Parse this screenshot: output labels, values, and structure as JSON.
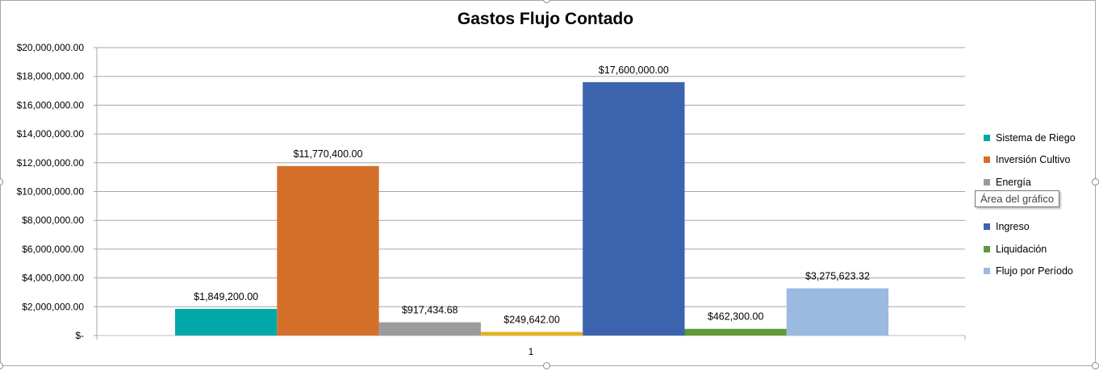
{
  "tooltip": "Área del gráfico",
  "chart_data": {
    "type": "bar",
    "title": "Gastos Flujo Contado",
    "xlabel": "",
    "ylabel": "",
    "categories": [
      "1"
    ],
    "ylim": [
      0,
      20000000
    ],
    "yticks": [
      "$-",
      "$2,000,000.00",
      "$4,000,000.00",
      "$6,000,000.00",
      "$8,000,000.00",
      "$10,000,000.00",
      "$12,000,000.00",
      "$14,000,000.00",
      "$16,000,000.00",
      "$18,000,000.00",
      "$20,000,000.00"
    ],
    "grid": true,
    "legend_position": "right",
    "series": [
      {
        "name": "Sistema de Riego",
        "values": [
          1849200.0
        ],
        "label": "$1,849,200.00",
        "color": "#00A9A8",
        "in_legend": true
      },
      {
        "name": "Inversión Cultivo",
        "values": [
          11770400.0
        ],
        "label": "$11,770,400.00",
        "color": "#D46F2A",
        "in_legend": true
      },
      {
        "name": "Energía",
        "values": [
          917434.68
        ],
        "label": "$917,434.68",
        "color": "#9B9B9B",
        "in_legend": true
      },
      {
        "name": "",
        "values": [
          249642.0
        ],
        "label": "$249,642.00",
        "color": "#E5B11C",
        "in_legend": false
      },
      {
        "name": "Ingreso",
        "values": [
          17600000.0
        ],
        "label": "$17,600,000.00",
        "color": "#3C63AE",
        "in_legend": true
      },
      {
        "name": "Liquidación",
        "values": [
          462300.0
        ],
        "label": "$462,300.00",
        "color": "#5E9A3A",
        "in_legend": true
      },
      {
        "name": "Flujo por Período",
        "values": [
          3275623.32
        ],
        "label": "$3,275,623.32",
        "color": "#9BBAE0",
        "in_legend": true
      }
    ]
  }
}
